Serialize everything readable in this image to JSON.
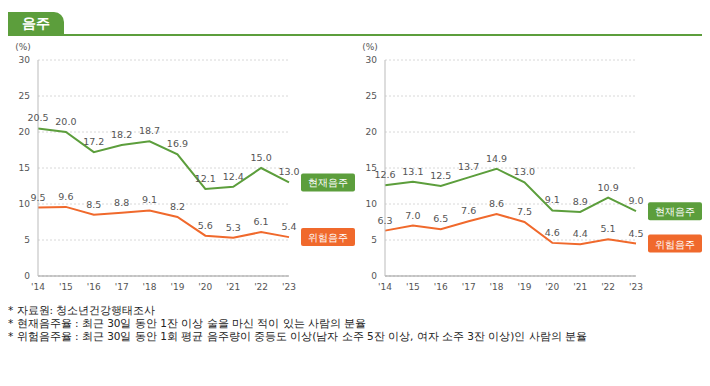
{
  "title": "음주",
  "notes": [
    "* 자료원: 청소년건강행태조사",
    "* 현재음주율 : 최근 30일 동안 1잔 이상 술을 마신 적이 있는 사람의 분율",
    "* 위험음주율 : 최근 30일 동안 1회 평균 음주량이 중등도 이상(남자 소주 5잔 이상, 여자 소주 3잔 이상)인 사람의 분율"
  ],
  "chart_data": [
    {
      "type": "line",
      "ylabel": "(%)",
      "categories": [
        "'14",
        "'15",
        "'16",
        "'17",
        "'18",
        "'19",
        "'20",
        "'21",
        "'22",
        "'23"
      ],
      "series": [
        {
          "name": "현재음주",
          "color": "#5c9e3c",
          "values": [
            20.5,
            20.0,
            17.2,
            18.2,
            18.7,
            16.9,
            12.1,
            12.4,
            15.0,
            13.0
          ],
          "value_labels": [
            "20.5",
            "20.0",
            "17.2",
            "18.2",
            "18.7",
            "16.9",
            "12.1",
            "12.4",
            "15.0",
            "13.0"
          ]
        },
        {
          "name": "위험음주",
          "color": "#f0692c",
          "values": [
            9.5,
            9.6,
            8.5,
            8.8,
            9.1,
            8.2,
            5.6,
            5.3,
            6.1,
            5.4
          ],
          "value_labels": [
            "9.5",
            "9.6",
            "8.5",
            "8.8",
            "9.1",
            "8.2",
            "5.6",
            "5.3",
            "6.1",
            "5.4"
          ]
        }
      ],
      "ylim": [
        0,
        30
      ],
      "yticks": [
        0,
        5,
        10,
        15,
        20,
        25,
        30
      ],
      "grid": true,
      "data_labels": true
    },
    {
      "type": "line",
      "ylabel": "(%)",
      "categories": [
        "'14",
        "'15",
        "'16",
        "'17",
        "'18",
        "'19",
        "'20",
        "'21",
        "'22",
        "'23"
      ],
      "series": [
        {
          "name": "현재음주",
          "color": "#5c9e3c",
          "values": [
            12.6,
            13.1,
            12.5,
            13.7,
            14.9,
            13.0,
            9.1,
            8.9,
            10.9,
            9.0
          ],
          "value_labels": [
            "12.6",
            "13.1",
            "12.5",
            "13.7",
            "14.9",
            "13.0",
            "9.1",
            "8.9",
            "10.9",
            "9.0"
          ]
        },
        {
          "name": "위험음주",
          "color": "#f0692c",
          "values": [
            6.3,
            7.0,
            6.5,
            7.6,
            8.6,
            7.5,
            4.6,
            4.4,
            5.1,
            4.5
          ],
          "value_labels": [
            "6.3",
            "7.0",
            "6.5",
            "7.6",
            "8.6",
            "7.5",
            "4.6",
            "4.4",
            "5.1",
            "4.5"
          ]
        }
      ],
      "ylim": [
        0,
        30
      ],
      "yticks": [
        0,
        5,
        10,
        15,
        20,
        25,
        30
      ],
      "grid": true,
      "data_labels": true
    }
  ]
}
